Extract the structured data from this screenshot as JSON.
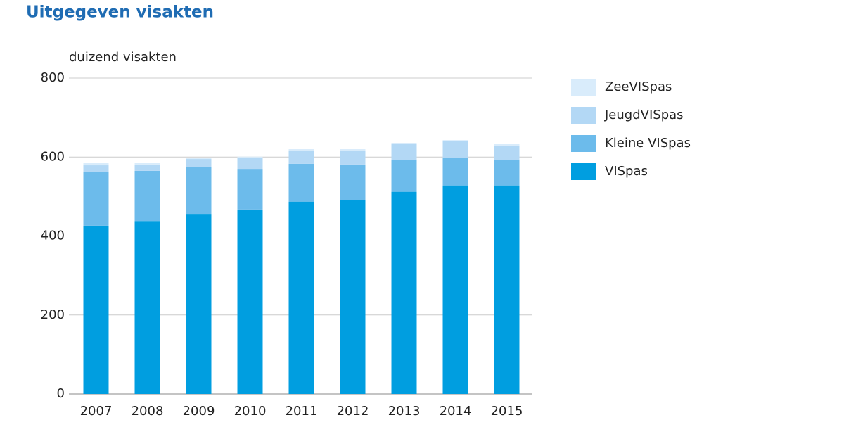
{
  "chart_data": {
    "type": "stacked-bar",
    "title": "Uitgegeven visakten",
    "y_label": "duizend visakten",
    "categories": [
      "2007",
      "2008",
      "2009",
      "2010",
      "2011",
      "2012",
      "2013",
      "2014",
      "2015"
    ],
    "series": [
      {
        "name": "VISpas",
        "color": "#009ee0",
        "values": [
          426,
          438,
          456,
          467,
          487,
          490,
          512,
          528,
          528
        ]
      },
      {
        "name": "Kleine VISpas",
        "color": "#6cbbeb",
        "values": [
          137,
          127,
          118,
          103,
          96,
          91,
          80,
          69,
          64
        ]
      },
      {
        "name": "JeugdVISpas",
        "color": "#b3d8f5",
        "values": [
          16,
          16,
          21,
          29,
          34,
          36,
          41,
          43,
          37
        ]
      },
      {
        "name": "ZeeVISpas",
        "color": "#d9ecfb",
        "values": [
          7,
          5,
          2,
          2,
          3,
          3,
          3,
          3,
          4
        ]
      }
    ],
    "ylim": [
      0,
      800
    ],
    "yticks": [
      0,
      200,
      400,
      600,
      800
    ],
    "grid": true,
    "legend": "right"
  }
}
